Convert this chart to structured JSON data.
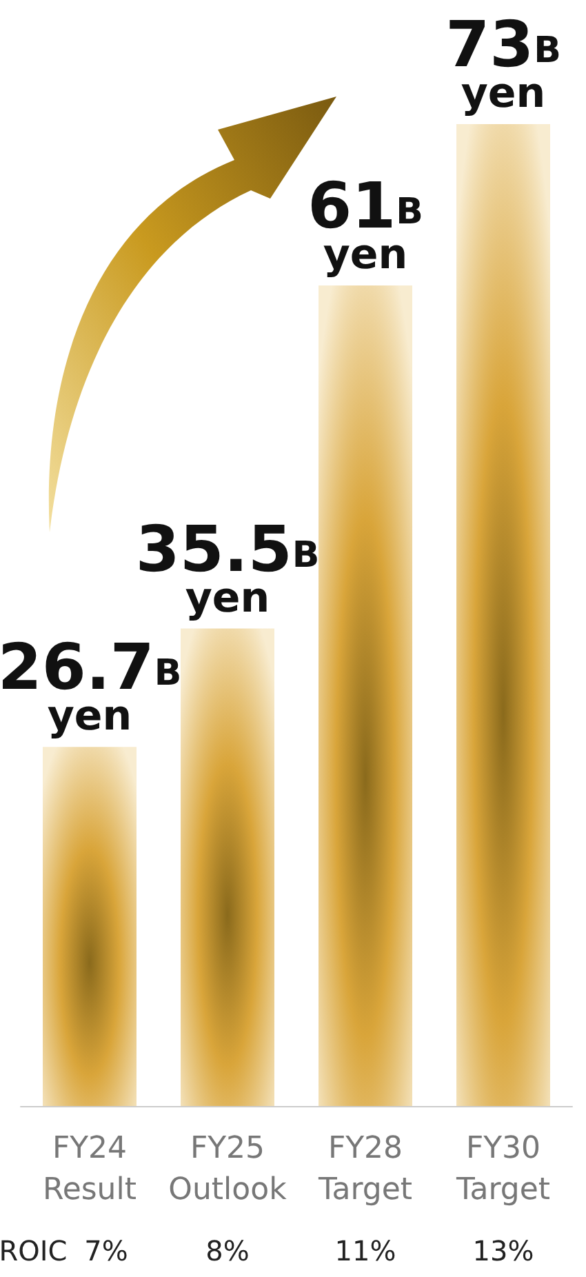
{
  "chart_data": {
    "type": "bar",
    "categories": [
      "FY24\nResult",
      "FY25\nOutlook",
      "FY28\nTarget",
      "FY30\nTarget"
    ],
    "values": [
      26.7,
      35.5,
      61,
      73
    ],
    "colors": [
      "#d9a53a",
      "#d9a53a",
      "#d9a53a",
      "#d9a53a"
    ],
    "value_labels": [
      "26.7B yen",
      "35.5B yen",
      "61B yen",
      "73B yen"
    ],
    "annotations": [
      "ROIC",
      "7%",
      "8%",
      "11%",
      "13%"
    ],
    "grid": false
  }
}
